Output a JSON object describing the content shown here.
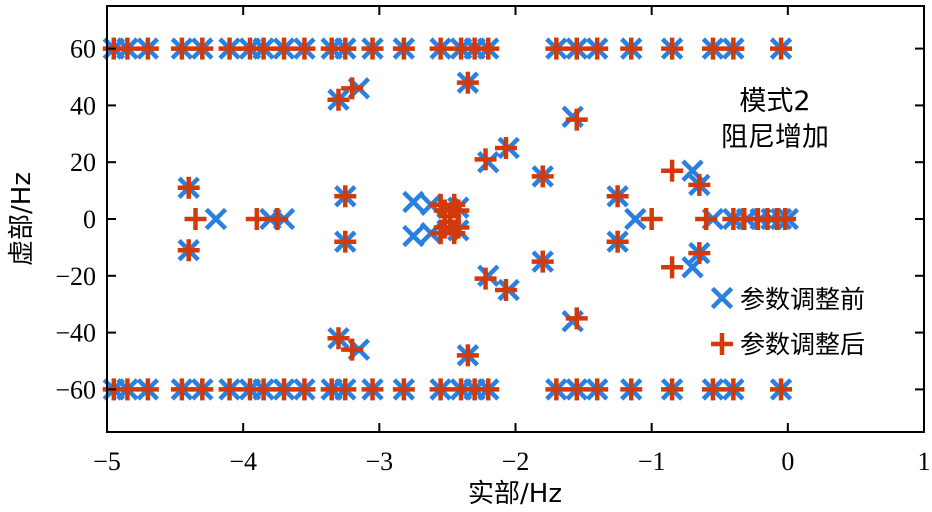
{
  "chart_data": {
    "type": "scatter",
    "xlabel": "实部/Hz",
    "ylabel": "虚部/Hz",
    "xlim": [
      -5,
      1
    ],
    "ylim": [
      -75,
      75
    ],
    "xticks": [
      -5,
      -4,
      -3,
      -2,
      -1,
      0,
      1
    ],
    "yticks": [
      -60,
      -40,
      -20,
      0,
      20,
      40,
      60
    ],
    "xtick_labels": [
      "−5",
      "−4",
      "−3",
      "−2",
      "−1",
      "0",
      "1"
    ],
    "ytick_labels": [
      "−60",
      "−40",
      "−20",
      "0",
      "20",
      "40",
      "60"
    ],
    "annotation": [
      "模式2",
      "阻尼增加"
    ],
    "legend_position": "right",
    "grid": false,
    "series": [
      {
        "name": "参数调整前",
        "marker": "x",
        "color": "#2a7fdf",
        "points": [
          [
            -4.4,
            11
          ],
          [
            -4.4,
            -11
          ],
          [
            -4.2,
            0
          ],
          [
            -3.8,
            0
          ],
          [
            -3.7,
            0
          ],
          [
            -3.25,
            8
          ],
          [
            -3.25,
            -8
          ],
          [
            -3.3,
            42
          ],
          [
            -3.3,
            -42
          ],
          [
            -3.15,
            46
          ],
          [
            -3.15,
            -46
          ],
          [
            -2.75,
            6
          ],
          [
            -2.75,
            -6
          ],
          [
            -2.62,
            5
          ],
          [
            -2.62,
            -5
          ],
          [
            -2.5,
            4
          ],
          [
            -2.5,
            -4
          ],
          [
            -2.42,
            4
          ],
          [
            -2.42,
            -4
          ],
          [
            -2.35,
            48
          ],
          [
            -2.35,
            -48
          ],
          [
            -2.2,
            20
          ],
          [
            -2.2,
            -20
          ],
          [
            -2.05,
            25
          ],
          [
            -2.05,
            -25
          ],
          [
            -1.8,
            15
          ],
          [
            -1.8,
            -15
          ],
          [
            -1.58,
            36
          ],
          [
            -1.58,
            -36
          ],
          [
            -1.25,
            8
          ],
          [
            -1.25,
            -8
          ],
          [
            -1.12,
            0
          ],
          [
            -0.7,
            17
          ],
          [
            -0.7,
            -17
          ],
          [
            -0.65,
            12
          ],
          [
            -0.65,
            -12
          ],
          [
            -0.55,
            0
          ],
          [
            -0.4,
            0
          ],
          [
            -0.3,
            0
          ],
          [
            -0.2,
            0
          ],
          [
            -0.12,
            0
          ],
          [
            -0.05,
            0
          ],
          [
            0.0,
            0
          ],
          [
            -4.95,
            60
          ],
          [
            -4.85,
            60
          ],
          [
            -4.7,
            60
          ],
          [
            -4.45,
            60
          ],
          [
            -4.3,
            60
          ],
          [
            -4.1,
            60
          ],
          [
            -3.95,
            60
          ],
          [
            -3.85,
            60
          ],
          [
            -3.7,
            60
          ],
          [
            -3.55,
            60
          ],
          [
            -3.35,
            60
          ],
          [
            -3.25,
            60
          ],
          [
            -3.05,
            60
          ],
          [
            -2.82,
            60
          ],
          [
            -2.55,
            60
          ],
          [
            -2.4,
            60
          ],
          [
            -2.3,
            60
          ],
          [
            -2.2,
            60
          ],
          [
            -1.7,
            60
          ],
          [
            -1.55,
            60
          ],
          [
            -1.4,
            60
          ],
          [
            -1.15,
            60
          ],
          [
            -0.85,
            60
          ],
          [
            -0.55,
            60
          ],
          [
            -0.4,
            60
          ],
          [
            -0.05,
            60
          ],
          [
            -4.95,
            -60
          ],
          [
            -4.85,
            -60
          ],
          [
            -4.7,
            -60
          ],
          [
            -4.45,
            -60
          ],
          [
            -4.3,
            -60
          ],
          [
            -4.1,
            -60
          ],
          [
            -3.95,
            -60
          ],
          [
            -3.85,
            -60
          ],
          [
            -3.7,
            -60
          ],
          [
            -3.55,
            -60
          ],
          [
            -3.35,
            -60
          ],
          [
            -3.25,
            -60
          ],
          [
            -3.05,
            -60
          ],
          [
            -2.82,
            -60
          ],
          [
            -2.55,
            -60
          ],
          [
            -2.4,
            -60
          ],
          [
            -2.3,
            -60
          ],
          [
            -2.2,
            -60
          ],
          [
            -1.7,
            -60
          ],
          [
            -1.55,
            -60
          ],
          [
            -1.4,
            -60
          ],
          [
            -1.15,
            -60
          ],
          [
            -0.85,
            -60
          ],
          [
            -0.55,
            -60
          ],
          [
            -0.4,
            -60
          ],
          [
            -0.05,
            -60
          ]
        ]
      },
      {
        "name": "参数调整后",
        "marker": "+",
        "color": "#d23a0a",
        "points": [
          [
            -4.4,
            11
          ],
          [
            -4.4,
            -11
          ],
          [
            -4.35,
            0
          ],
          [
            -3.9,
            0
          ],
          [
            -3.75,
            0
          ],
          [
            -3.25,
            8
          ],
          [
            -3.25,
            -8
          ],
          [
            -3.3,
            42
          ],
          [
            -3.3,
            -42
          ],
          [
            -3.2,
            46
          ],
          [
            -3.2,
            -46
          ],
          [
            -2.55,
            5
          ],
          [
            -2.55,
            -5
          ],
          [
            -2.52,
            3
          ],
          [
            -2.52,
            -3
          ],
          [
            -2.48,
            1
          ],
          [
            -2.48,
            -1
          ],
          [
            -2.45,
            5
          ],
          [
            -2.45,
            -5
          ],
          [
            -2.42,
            3
          ],
          [
            -2.42,
            -3
          ],
          [
            -2.35,
            48
          ],
          [
            -2.35,
            -48
          ],
          [
            -2.22,
            21
          ],
          [
            -2.22,
            -21
          ],
          [
            -2.07,
            25
          ],
          [
            -2.07,
            -25
          ],
          [
            -1.8,
            15
          ],
          [
            -1.8,
            -15
          ],
          [
            -1.55,
            35
          ],
          [
            -1.55,
            -35
          ],
          [
            -1.25,
            8
          ],
          [
            -1.25,
            -8
          ],
          [
            -1.0,
            0
          ],
          [
            -0.85,
            17
          ],
          [
            -0.85,
            -17
          ],
          [
            -0.65,
            12
          ],
          [
            -0.65,
            -12
          ],
          [
            -0.6,
            0
          ],
          [
            -0.4,
            0
          ],
          [
            -0.32,
            0
          ],
          [
            -0.22,
            0
          ],
          [
            -0.15,
            0
          ],
          [
            -0.08,
            0
          ],
          [
            -0.02,
            0
          ],
          [
            -4.95,
            60
          ],
          [
            -4.85,
            60
          ],
          [
            -4.7,
            60
          ],
          [
            -4.45,
            60
          ],
          [
            -4.3,
            60
          ],
          [
            -4.1,
            60
          ],
          [
            -3.95,
            60
          ],
          [
            -3.85,
            60
          ],
          [
            -3.7,
            60
          ],
          [
            -3.55,
            60
          ],
          [
            -3.35,
            60
          ],
          [
            -3.25,
            60
          ],
          [
            -3.05,
            60
          ],
          [
            -2.82,
            60
          ],
          [
            -2.55,
            60
          ],
          [
            -2.4,
            60
          ],
          [
            -2.3,
            60
          ],
          [
            -2.2,
            60
          ],
          [
            -1.7,
            60
          ],
          [
            -1.55,
            60
          ],
          [
            -1.4,
            60
          ],
          [
            -1.15,
            60
          ],
          [
            -0.85,
            60
          ],
          [
            -0.55,
            60
          ],
          [
            -0.4,
            60
          ],
          [
            -0.05,
            60
          ],
          [
            -4.95,
            -60
          ],
          [
            -4.85,
            -60
          ],
          [
            -4.7,
            -60
          ],
          [
            -4.45,
            -60
          ],
          [
            -4.3,
            -60
          ],
          [
            -4.1,
            -60
          ],
          [
            -3.95,
            -60
          ],
          [
            -3.85,
            -60
          ],
          [
            -3.7,
            -60
          ],
          [
            -3.55,
            -60
          ],
          [
            -3.35,
            -60
          ],
          [
            -3.25,
            -60
          ],
          [
            -3.05,
            -60
          ],
          [
            -2.82,
            -60
          ],
          [
            -2.55,
            -60
          ],
          [
            -2.4,
            -60
          ],
          [
            -2.3,
            -60
          ],
          [
            -2.2,
            -60
          ],
          [
            -1.7,
            -60
          ],
          [
            -1.55,
            -60
          ],
          [
            -1.4,
            -60
          ],
          [
            -1.15,
            -60
          ],
          [
            -0.85,
            -60
          ],
          [
            -0.55,
            -60
          ],
          [
            -0.4,
            -60
          ],
          [
            -0.05,
            -60
          ]
        ]
      }
    ]
  }
}
